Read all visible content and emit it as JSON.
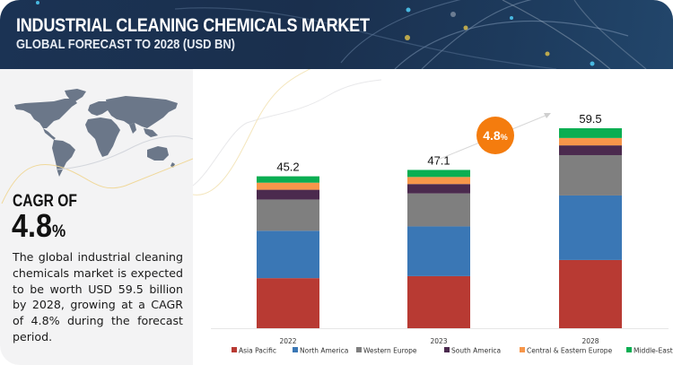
{
  "header": {
    "title": "INDUSTRIAL CLEANING CHEMICALS MARKET",
    "subtitle": "GLOBAL FORECAST TO 2028 (USD BN)"
  },
  "left_panel": {
    "map_icon": "world-map-icon",
    "cagr_label": "CAGR OF",
    "cagr_number": "4.8",
    "cagr_percent_sign": "%",
    "description": "The global industrial cleaning chemicals market is expected to be worth USD 59.5 billion by 2028, growing at a CAGR of 4.8% during the forecast period."
  },
  "cagr_badge": {
    "number": "4.8",
    "percent_sign": "%",
    "color": "#f47c0e"
  },
  "chart_data": {
    "type": "bar",
    "stacked": true,
    "title": "INDUSTRIAL CLEANING CHEMICALS MARKET",
    "subtitle": "GLOBAL FORECAST TO 2028 (USD BN)",
    "xlabel": "",
    "ylabel": "USD BN",
    "ylim": [
      0,
      59.5
    ],
    "grid": false,
    "legend_position": "bottom",
    "categories": [
      "2022",
      "2023",
      "2028"
    ],
    "totals": [
      45.2,
      47.1,
      59.5
    ],
    "total_labels": [
      "45.2",
      "47.1",
      "59.5"
    ],
    "series": [
      {
        "name": "Asia Pacific",
        "color": "#b83a33",
        "values": [
          14.9,
          15.5,
          20.3
        ]
      },
      {
        "name": "North America",
        "color": "#3a77b5",
        "values": [
          14.1,
          14.8,
          19.2
        ]
      },
      {
        "name": "Western Europe",
        "color": "#7f7f7f",
        "values": [
          9.3,
          9.8,
          12.0
        ]
      },
      {
        "name": "South America",
        "color": "#4b2a4e",
        "values": [
          2.9,
          2.8,
          2.9
        ]
      },
      {
        "name": "Central & Eastern Europe",
        "color": "#f7964a",
        "values": [
          2.1,
          2.1,
          2.2
        ]
      },
      {
        "name": "Middle-East Africa",
        "color": "#0aae52",
        "values": [
          1.9,
          2.1,
          2.9
        ]
      }
    ],
    "annotations": [
      "CAGR 4.8%"
    ]
  }
}
